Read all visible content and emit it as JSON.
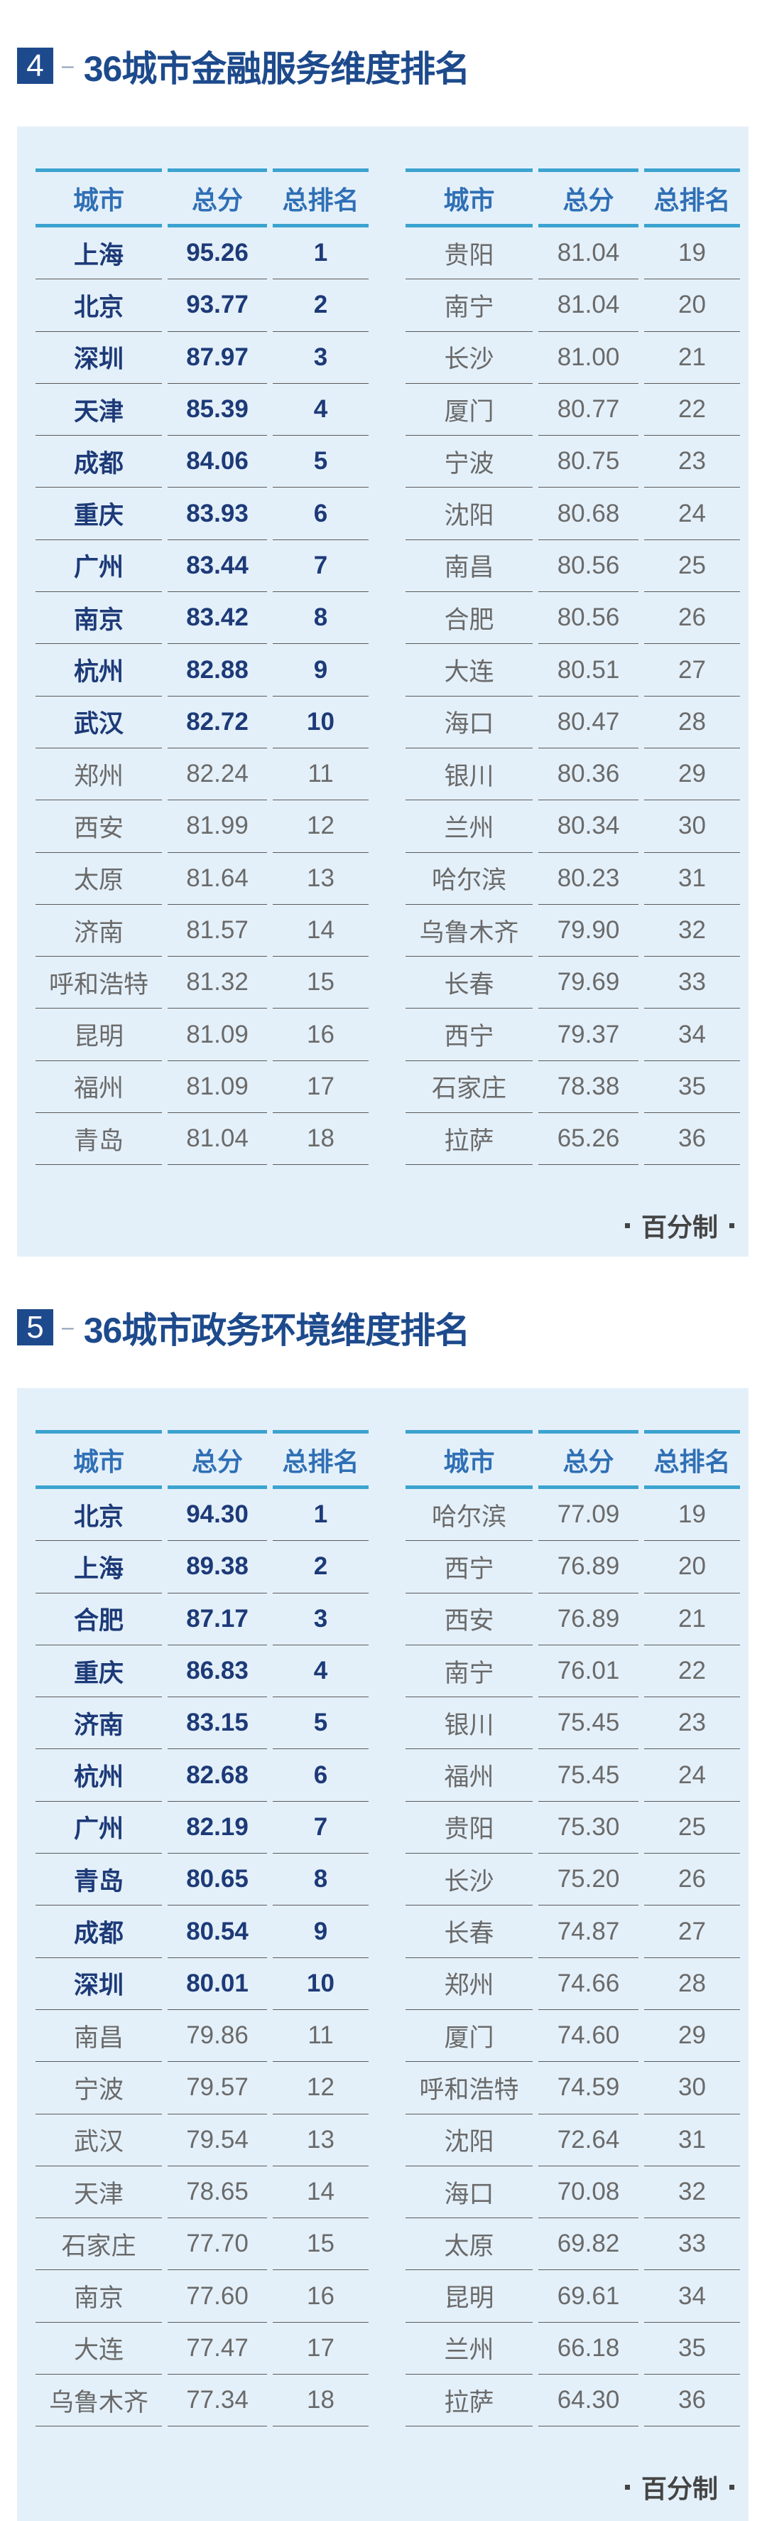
{
  "colors": {
    "title": "#1d4a8c",
    "panel_bg": "#e4f0f9",
    "header_line": "#3ba3cf",
    "header_text": "#2f6fb5",
    "top10_text": "#1d3a78",
    "other_text": "#6a6a6a"
  },
  "sections": [
    {
      "number": "4",
      "dash": "–",
      "title": "36城市金融服务维度排名",
      "headers": [
        "城市",
        "总分",
        "总排名"
      ],
      "unit": "百分制",
      "rows": [
        [
          "上海",
          "95.26",
          "1"
        ],
        [
          "北京",
          "93.77",
          "2"
        ],
        [
          "深圳",
          "87.97",
          "3"
        ],
        [
          "天津",
          "85.39",
          "4"
        ],
        [
          "成都",
          "84.06",
          "5"
        ],
        [
          "重庆",
          "83.93",
          "6"
        ],
        [
          "广州",
          "83.44",
          "7"
        ],
        [
          "南京",
          "83.42",
          "8"
        ],
        [
          "杭州",
          "82.88",
          "9"
        ],
        [
          "武汉",
          "82.72",
          "10"
        ],
        [
          "郑州",
          "82.24",
          "11"
        ],
        [
          "西安",
          "81.99",
          "12"
        ],
        [
          "太原",
          "81.64",
          "13"
        ],
        [
          "济南",
          "81.57",
          "14"
        ],
        [
          "呼和浩特",
          "81.32",
          "15"
        ],
        [
          "昆明",
          "81.09",
          "16"
        ],
        [
          "福州",
          "81.09",
          "17"
        ],
        [
          "青岛",
          "81.04",
          "18"
        ],
        [
          "贵阳",
          "81.04",
          "19"
        ],
        [
          "南宁",
          "81.04",
          "20"
        ],
        [
          "长沙",
          "81.00",
          "21"
        ],
        [
          "厦门",
          "80.77",
          "22"
        ],
        [
          "宁波",
          "80.75",
          "23"
        ],
        [
          "沈阳",
          "80.68",
          "24"
        ],
        [
          "南昌",
          "80.56",
          "25"
        ],
        [
          "合肥",
          "80.56",
          "26"
        ],
        [
          "大连",
          "80.51",
          "27"
        ],
        [
          "海口",
          "80.47",
          "28"
        ],
        [
          "银川",
          "80.36",
          "29"
        ],
        [
          "兰州",
          "80.34",
          "30"
        ],
        [
          "哈尔滨",
          "80.23",
          "31"
        ],
        [
          "乌鲁木齐",
          "79.90",
          "32"
        ],
        [
          "长春",
          "79.69",
          "33"
        ],
        [
          "西宁",
          "79.37",
          "34"
        ],
        [
          "石家庄",
          "78.38",
          "35"
        ],
        [
          "拉萨",
          "65.26",
          "36"
        ]
      ]
    },
    {
      "number": "5",
      "dash": "–",
      "title": "36城市政务环境维度排名",
      "headers": [
        "城市",
        "总分",
        "总排名"
      ],
      "unit": "百分制",
      "rows": [
        [
          "北京",
          "94.30",
          "1"
        ],
        [
          "上海",
          "89.38",
          "2"
        ],
        [
          "合肥",
          "87.17",
          "3"
        ],
        [
          "重庆",
          "86.83",
          "4"
        ],
        [
          "济南",
          "83.15",
          "5"
        ],
        [
          "杭州",
          "82.68",
          "6"
        ],
        [
          "广州",
          "82.19",
          "7"
        ],
        [
          "青岛",
          "80.65",
          "8"
        ],
        [
          "成都",
          "80.54",
          "9"
        ],
        [
          "深圳",
          "80.01",
          "10"
        ],
        [
          "南昌",
          "79.86",
          "11"
        ],
        [
          "宁波",
          "79.57",
          "12"
        ],
        [
          "武汉",
          "79.54",
          "13"
        ],
        [
          "天津",
          "78.65",
          "14"
        ],
        [
          "石家庄",
          "77.70",
          "15"
        ],
        [
          "南京",
          "77.60",
          "16"
        ],
        [
          "大连",
          "77.47",
          "17"
        ],
        [
          "乌鲁木齐",
          "77.34",
          "18"
        ],
        [
          "哈尔滨",
          "77.09",
          "19"
        ],
        [
          "西宁",
          "76.89",
          "20"
        ],
        [
          "西安",
          "76.89",
          "21"
        ],
        [
          "南宁",
          "76.01",
          "22"
        ],
        [
          "银川",
          "75.45",
          "23"
        ],
        [
          "福州",
          "75.45",
          "24"
        ],
        [
          "贵阳",
          "75.30",
          "25"
        ],
        [
          "长沙",
          "75.20",
          "26"
        ],
        [
          "长春",
          "74.87",
          "27"
        ],
        [
          "郑州",
          "74.66",
          "28"
        ],
        [
          "厦门",
          "74.60",
          "29"
        ],
        [
          "呼和浩特",
          "74.59",
          "30"
        ],
        [
          "沈阳",
          "72.64",
          "31"
        ],
        [
          "海口",
          "70.08",
          "32"
        ],
        [
          "太原",
          "69.82",
          "33"
        ],
        [
          "昆明",
          "69.61",
          "34"
        ],
        [
          "兰州",
          "66.18",
          "35"
        ],
        [
          "拉萨",
          "64.30",
          "36"
        ]
      ]
    }
  ]
}
